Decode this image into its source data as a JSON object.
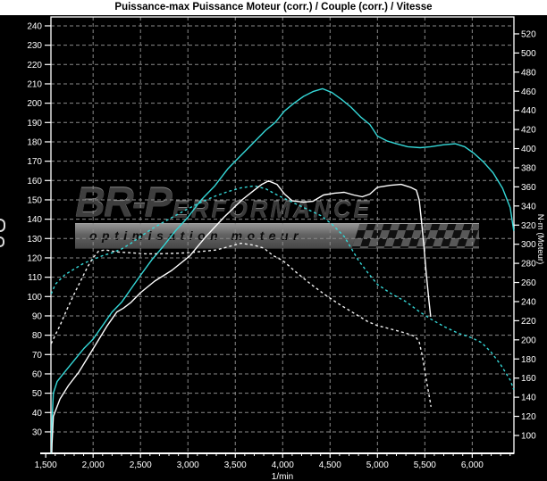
{
  "window": {
    "background": "#000000",
    "title_strip_bg": "#ffffff"
  },
  "watermark": {
    "logo_main": "BR-P",
    "logo_rest": "ERFORMANCE",
    "tagline": "optimisation moteur"
  },
  "colors": {
    "accent_cyan": "#35d8d8",
    "curve_white": "#ffffff",
    "grid": "#8a8a8a",
    "frame": "#ffffff",
    "axis_text": "#ffffff"
  },
  "chart_data": {
    "type": "line",
    "title": "Puissance-max Puissance Moteur (corr.) / Couple (corr.) / Vitesse",
    "grid": true,
    "legend": "none",
    "x_axis": {
      "label": "1/min",
      "min": 1555,
      "max": 6440,
      "major_ticks": [
        {
          "value": 1500,
          "label": "1,500"
        },
        {
          "value": 2000,
          "label": "2,000"
        },
        {
          "value": 2500,
          "label": "2,500"
        },
        {
          "value": 3000,
          "label": "3,000"
        },
        {
          "value": 3500,
          "label": "3,500"
        },
        {
          "value": 4000,
          "label": "4,000"
        },
        {
          "value": 4500,
          "label": "4,500"
        },
        {
          "value": 5000,
          "label": "5,000"
        },
        {
          "value": 5500,
          "label": "5,500"
        },
        {
          "value": 6000,
          "label": "6,000"
        }
      ],
      "minor_tick_step": 100
    },
    "y_left": {
      "min": 18.9,
      "max": 244.6,
      "ticks": [
        240,
        230,
        220,
        210,
        200,
        190,
        180,
        170,
        160,
        150,
        140,
        130,
        120,
        110,
        100,
        90,
        80,
        70,
        60,
        50,
        40,
        30
      ]
    },
    "y_right": {
      "label": "N·m (Moteur)",
      "min": 81.3,
      "max": 537.7,
      "ticks": [
        520,
        500,
        480,
        460,
        440,
        420,
        400,
        380,
        360,
        340,
        320,
        300,
        280,
        260,
        240,
        220,
        200,
        180,
        160,
        140,
        120,
        100
      ]
    },
    "series": [
      {
        "name": "puissance-corr-run1",
        "label": "Puissance Moteur (corr.)",
        "color": "#35d8d8",
        "dash": false,
        "axis": "left",
        "points": [
          [
            1558,
            10
          ],
          [
            1566,
            36
          ],
          [
            1580,
            50
          ],
          [
            1620,
            56
          ],
          [
            1700,
            61
          ],
          [
            1800,
            67
          ],
          [
            1900,
            73
          ],
          [
            2000,
            78
          ],
          [
            2100,
            85
          ],
          [
            2200,
            92
          ],
          [
            2300,
            97
          ],
          [
            2400,
            104
          ],
          [
            2500,
            111
          ],
          [
            2620,
            119
          ],
          [
            2740,
            126
          ],
          [
            2870,
            134
          ],
          [
            3000,
            141
          ],
          [
            3140,
            150
          ],
          [
            3280,
            157
          ],
          [
            3420,
            166
          ],
          [
            3560,
            173
          ],
          [
            3700,
            180
          ],
          [
            3820,
            186
          ],
          [
            3920,
            190
          ],
          [
            4020,
            196
          ],
          [
            4120,
            200
          ],
          [
            4220,
            203.5
          ],
          [
            4320,
            206
          ],
          [
            4420,
            207.5
          ],
          [
            4520,
            205.5
          ],
          [
            4620,
            202
          ],
          [
            4720,
            198
          ],
          [
            4820,
            193
          ],
          [
            4920,
            189
          ],
          [
            5000,
            183
          ],
          [
            5100,
            180.5
          ],
          [
            5200,
            179
          ],
          [
            5320,
            177.5
          ],
          [
            5450,
            177
          ],
          [
            5560,
            177.5
          ],
          [
            5700,
            178.5
          ],
          [
            5820,
            179
          ],
          [
            5920,
            177.5
          ],
          [
            6020,
            174
          ],
          [
            6120,
            169.5
          ],
          [
            6220,
            164
          ],
          [
            6320,
            156
          ],
          [
            6400,
            146
          ],
          [
            6438,
            134
          ]
        ]
      },
      {
        "name": "couple-corr-run1",
        "label": "Couple (corr.)",
        "color": "#35d8d8",
        "dash": true,
        "axis": "right",
        "points": [
          [
            1558,
            248
          ],
          [
            1600,
            258
          ],
          [
            1700,
            268
          ],
          [
            1800,
            274
          ],
          [
            1900,
            280
          ],
          [
            2000,
            284
          ],
          [
            2100,
            288
          ],
          [
            2200,
            291
          ],
          [
            2300,
            295
          ],
          [
            2400,
            301
          ],
          [
            2500,
            308
          ],
          [
            2620,
            316
          ],
          [
            2740,
            323
          ],
          [
            2870,
            330
          ],
          [
            3000,
            337
          ],
          [
            3140,
            344
          ],
          [
            3280,
            350
          ],
          [
            3420,
            355
          ],
          [
            3560,
            359
          ],
          [
            3700,
            361
          ],
          [
            3820,
            358
          ],
          [
            3950,
            351
          ],
          [
            4100,
            344
          ],
          [
            4250,
            337
          ],
          [
            4400,
            330
          ],
          [
            4520,
            321
          ],
          [
            4650,
            308
          ],
          [
            4800,
            283
          ],
          [
            4900,
            270
          ],
          [
            5000,
            258
          ],
          [
            5150,
            248
          ],
          [
            5300,
            240
          ],
          [
            5450,
            229
          ],
          [
            5560,
            222
          ],
          [
            5700,
            214
          ],
          [
            5850,
            207
          ],
          [
            6000,
            202
          ],
          [
            6100,
            197
          ],
          [
            6200,
            187
          ],
          [
            6300,
            174
          ],
          [
            6400,
            158
          ],
          [
            6438,
            148
          ]
        ]
      },
      {
        "name": "puissance-corr-run2",
        "label": "Puissance Moteur (corr.)",
        "color": "#ffffff",
        "dash": false,
        "axis": "left",
        "points": [
          [
            1558,
            8
          ],
          [
            1566,
            24
          ],
          [
            1580,
            38
          ],
          [
            1650,
            47
          ],
          [
            1740,
            54
          ],
          [
            1850,
            61
          ],
          [
            1950,
            69
          ],
          [
            2050,
            77
          ],
          [
            2150,
            85
          ],
          [
            2250,
            92
          ],
          [
            2320,
            94
          ],
          [
            2400,
            97
          ],
          [
            2500,
            102
          ],
          [
            2650,
            108
          ],
          [
            2830,
            113.5
          ],
          [
            3020,
            121
          ],
          [
            3190,
            131
          ],
          [
            3380,
            141
          ],
          [
            3570,
            150
          ],
          [
            3700,
            155
          ],
          [
            3780,
            158
          ],
          [
            3850,
            159.8
          ],
          [
            3940,
            158
          ],
          [
            4020,
            153
          ],
          [
            4100,
            149.5
          ],
          [
            4220,
            148.8
          ],
          [
            4320,
            149.3
          ],
          [
            4430,
            152.5
          ],
          [
            4550,
            153.5
          ],
          [
            4650,
            153.9
          ],
          [
            4750,
            152.5
          ],
          [
            4840,
            151.6
          ],
          [
            4920,
            153
          ],
          [
            5000,
            156.5
          ],
          [
            5130,
            157.5
          ],
          [
            5250,
            158
          ],
          [
            5350,
            156.5
          ],
          [
            5410,
            155
          ],
          [
            5440,
            150
          ],
          [
            5465,
            139
          ],
          [
            5490,
            126
          ],
          [
            5515,
            112
          ],
          [
            5545,
            97
          ],
          [
            5562,
            89.5
          ]
        ]
      },
      {
        "name": "couple-corr-run2",
        "label": "Couple (corr.)",
        "color": "#f2f2f2",
        "dash": true,
        "axis": "right",
        "points": [
          [
            1558,
            196
          ],
          [
            1600,
            205
          ],
          [
            1650,
            215
          ],
          [
            1720,
            231
          ],
          [
            1800,
            248
          ],
          [
            1870,
            262
          ],
          [
            1940,
            276
          ],
          [
            2000,
            286
          ],
          [
            2060,
            293
          ],
          [
            2130,
            294
          ],
          [
            2250,
            292
          ],
          [
            2400,
            291
          ],
          [
            2550,
            290
          ],
          [
            2700,
            290
          ],
          [
            2850,
            290.5
          ],
          [
            3000,
            291
          ],
          [
            3150,
            292.5
          ],
          [
            3300,
            294
          ],
          [
            3450,
            298
          ],
          [
            3560,
            301
          ],
          [
            3700,
            299
          ],
          [
            3800,
            296
          ],
          [
            3900,
            288
          ],
          [
            4000,
            283
          ],
          [
            4150,
            270
          ],
          [
            4300,
            258
          ],
          [
            4450,
            247
          ],
          [
            4600,
            237
          ],
          [
            4750,
            228
          ],
          [
            4900,
            219
          ],
          [
            5000,
            215
          ],
          [
            5150,
            211
          ],
          [
            5300,
            207
          ],
          [
            5400,
            203.5
          ],
          [
            5440,
            198
          ],
          [
            5470,
            185
          ],
          [
            5500,
            168
          ],
          [
            5530,
            150
          ],
          [
            5555,
            136
          ],
          [
            5565,
            130
          ]
        ]
      }
    ]
  }
}
